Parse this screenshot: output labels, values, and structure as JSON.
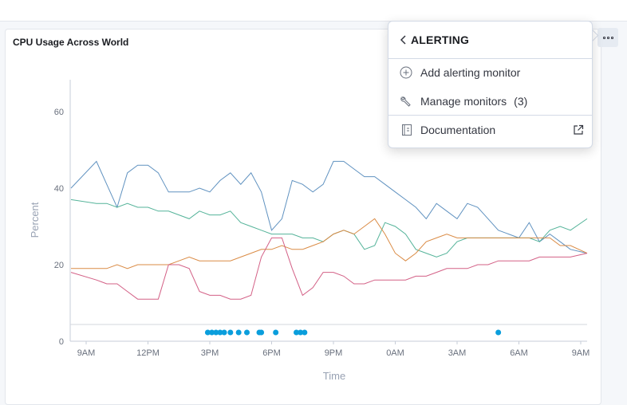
{
  "panel": {
    "title": "CPU Usage Across World"
  },
  "menu": {
    "title": "ALERTING",
    "items": [
      {
        "label": "Add alerting monitor",
        "icon": "plus-in-circle-icon"
      },
      {
        "label": "Manage monitors",
        "count": "(3)",
        "icon": "wrench-icon"
      },
      {
        "label": "Documentation",
        "icon": "document-icon",
        "trailing_icon": "external-link-icon"
      }
    ]
  },
  "chart_data": {
    "type": "line",
    "title": "",
    "xlabel": "Time",
    "ylabel": "Percent",
    "ylim": [
      0,
      60
    ],
    "yticks": [
      0,
      20,
      40,
      60
    ],
    "xticks": [
      "9AM",
      "12PM",
      "3PM",
      "6PM",
      "9PM",
      "0AM",
      "3AM",
      "6AM",
      "9AM"
    ],
    "x_hours": [
      0,
      0.5,
      1,
      1.5,
      2,
      2.5,
      3,
      3.5,
      4,
      4.5,
      5,
      5.5,
      6,
      6.5,
      7,
      7.5,
      8,
      8.5,
      9,
      9.5,
      10,
      10.5,
      11,
      11.5,
      12,
      12.5,
      13,
      13.5,
      14,
      14.5,
      15,
      15.5,
      16,
      16.5,
      17,
      17.5,
      18,
      18.5,
      19,
      19.5,
      20,
      20.5,
      21,
      21.5,
      22,
      22.5,
      23,
      23.5,
      24
    ],
    "series": [
      {
        "color": "#6092c0",
        "values": [
          40,
          47,
          41,
          35,
          44,
          46,
          46,
          44,
          39,
          39,
          39,
          40,
          39,
          42,
          44,
          41,
          44,
          39,
          29,
          32,
          42,
          41,
          39,
          41,
          47,
          47,
          45,
          43,
          43,
          41,
          39,
          37,
          35,
          32,
          36,
          34,
          32,
          36,
          35,
          32,
          29,
          28,
          27,
          31,
          26,
          28,
          26,
          24,
          23
        ]
      },
      {
        "color": "#54b399",
        "values": [
          37,
          36,
          36,
          35,
          36,
          35,
          35,
          34,
          34,
          33,
          32,
          34,
          33,
          33,
          34,
          31,
          30,
          29,
          28,
          28,
          28,
          27,
          27,
          26,
          28,
          29,
          28,
          24,
          25,
          31,
          30,
          28,
          24,
          23,
          22,
          23,
          26,
          27,
          27,
          27,
          27,
          27,
          27,
          27,
          26,
          29,
          30,
          29,
          32
        ]
      },
      {
        "color": "#da8b45",
        "values": [
          19,
          19,
          19,
          20,
          19,
          20,
          20,
          20,
          20,
          21,
          22,
          21,
          21,
          21,
          21,
          22,
          23,
          24,
          24,
          25,
          24,
          24,
          25,
          26,
          28,
          29,
          28,
          30,
          32,
          28,
          23,
          21,
          23,
          26,
          27,
          28,
          27,
          27,
          27,
          27,
          27,
          27,
          27,
          27,
          27,
          27,
          25,
          25,
          23
        ]
      },
      {
        "color": "#d36086",
        "values": [
          18,
          16,
          15,
          15,
          13,
          11,
          11,
          11,
          20,
          20,
          19,
          13,
          12,
          12,
          11,
          11,
          12,
          22,
          27,
          27,
          19,
          12,
          14,
          18,
          18,
          17,
          15,
          15,
          16,
          16,
          16,
          16,
          17,
          17,
          18,
          19,
          19,
          19,
          20,
          20,
          21,
          21,
          21,
          21,
          22,
          22,
          22,
          22,
          23
        ]
      }
    ],
    "annotation_hours": [
      5.9,
      6.1,
      6.3,
      6.5,
      6.7,
      7.0,
      7.4,
      7.8,
      8.4,
      8.5,
      9.2,
      10.2,
      10.4,
      10.6,
      20.0
    ]
  }
}
